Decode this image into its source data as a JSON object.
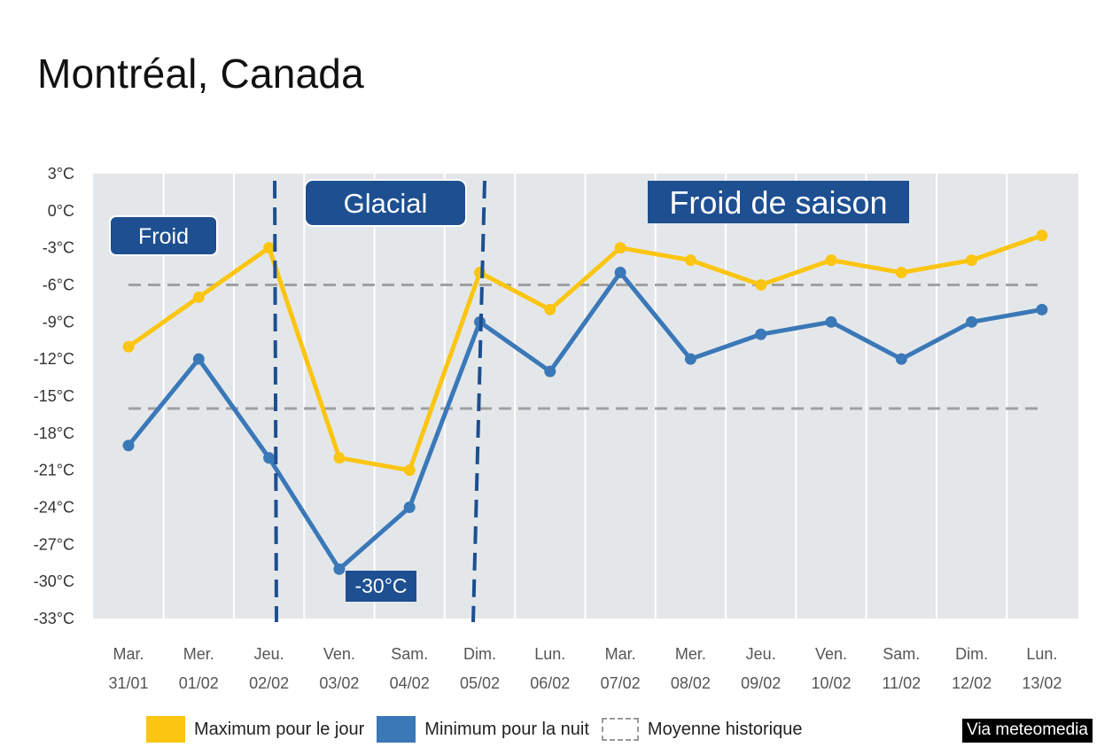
{
  "title": "Montréal, Canada",
  "source": "Via meteomedia",
  "colors": {
    "max": "#fbc512",
    "min": "#3a78b8",
    "average": "#a0a0a0",
    "plot_bg": "#e4e7ea",
    "label_bg": "#1d4f91",
    "divider": "#1d4f91"
  },
  "legend": {
    "max": "Maximum pour le jour",
    "min": "Minimum pour la nuit",
    "average": "Moyenne historique"
  },
  "chart_data": {
    "type": "line",
    "days": [
      "Mar.",
      "Mer.",
      "Jeu.",
      "Ven.",
      "Sam.",
      "Dim.",
      "Lun.",
      "Mar.",
      "Mer.",
      "Jeu.",
      "Ven.",
      "Sam.",
      "Dim.",
      "Lun."
    ],
    "dates": [
      "31/01",
      "01/02",
      "02/02",
      "03/02",
      "04/02",
      "05/02",
      "06/02",
      "07/02",
      "08/02",
      "09/02",
      "10/02",
      "11/02",
      "12/02",
      "13/02"
    ],
    "series": [
      {
        "name": "Maximum pour le jour",
        "values": [
          -11,
          -7,
          -3,
          -20,
          -21,
          -5,
          -8,
          -3,
          -4,
          -6,
          -4,
          -5,
          -4,
          -2
        ]
      },
      {
        "name": "Minimum pour la nuit",
        "values": [
          -19,
          -12,
          -20,
          -29,
          -24,
          -9,
          -13,
          -5,
          -12,
          -10,
          -9,
          -12,
          -9,
          -8
        ]
      }
    ],
    "historical_average": {
      "name": "Moyenne historique",
      "high": -6,
      "low": -16
    },
    "y_ticks": [
      "3°C",
      "0°C",
      "-3°C",
      "-6°C",
      "-9°C",
      "-12°C",
      "-15°C",
      "-18°C",
      "-21°C",
      "-24°C",
      "-27°C",
      "-30°C",
      "-33°C"
    ],
    "ylim": [
      -33,
      3
    ],
    "grid": "vertical",
    "periods": [
      {
        "label": "Froid"
      },
      {
        "label": "Glacial"
      },
      {
        "label": "Froid de saison"
      }
    ],
    "annotations": [
      {
        "text": "-30°C"
      }
    ]
  }
}
